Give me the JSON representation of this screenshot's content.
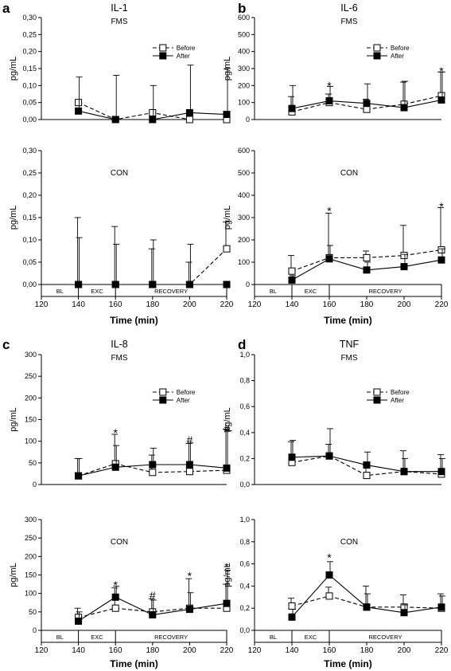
{
  "chart_data": [
    {
      "panel": "a",
      "title": "IL-1",
      "type": "line",
      "ylabel": "pg/mL",
      "xlabel": "Time (min)",
      "ylim": [
        0,
        0.3
      ],
      "yticks": [
        "0,00",
        "0,05",
        "0,10",
        "0,15",
        "0,20",
        "0,25",
        "0,30"
      ],
      "xlim": [
        120,
        220
      ],
      "x": [
        140,
        160,
        180,
        200,
        220
      ],
      "xticks": [
        "120",
        "140",
        "160",
        "180",
        "200",
        "220"
      ],
      "phases": [
        "BL",
        "EXC",
        "RECOVERY"
      ],
      "groups": [
        {
          "group": "FMS",
          "legend": [
            "Before",
            "After"
          ],
          "series": [
            {
              "name": "Before",
              "values": [
                0.05,
                0.0,
                0.02,
                0.0,
                0.0
              ],
              "err": [
                0.0,
                0.0,
                0.0,
                0.0,
                0.0
              ]
            },
            {
              "name": "After",
              "values": [
                0.025,
                0.0,
                0.0,
                0.02,
                0.015
              ],
              "err": [
                0.1,
                0.13,
                0.1,
                0.14,
                0.135
              ]
            }
          ],
          "sig": []
        },
        {
          "group": "CON",
          "legend": [],
          "series": [
            {
              "name": "Before",
              "values": [
                0.0,
                0.0,
                0.0,
                0.0,
                0.08
              ],
              "err": [
                0.15,
                0.13,
                0.08,
                0.05,
                0.06
              ]
            },
            {
              "name": "After",
              "values": [
                0.0,
                0.0,
                0.0,
                0.0,
                0.0
              ],
              "err": [
                0.105,
                0.09,
                0.1,
                0.09,
                0.0
              ]
            }
          ],
          "sig": []
        }
      ]
    },
    {
      "panel": "b",
      "title": "IL-6",
      "type": "line",
      "ylabel": "pg/mL",
      "xlabel": "Time (min)",
      "ylim": [
        0,
        600
      ],
      "yticks": [
        "0",
        "100",
        "200",
        "300",
        "400",
        "500",
        "600"
      ],
      "xlim": [
        120,
        220
      ],
      "x": [
        140,
        160,
        180,
        200,
        220
      ],
      "xticks": [
        "120",
        "140",
        "160",
        "180",
        "200",
        "220"
      ],
      "phases": [
        "BL",
        "EXC",
        "RECOVERY"
      ],
      "groups": [
        {
          "group": "FMS",
          "legend": [
            "Before",
            "After"
          ],
          "series": [
            {
              "name": "Before",
              "values": [
                45,
                100,
                60,
                90,
                140
              ],
              "err": [
                90,
                50,
                60,
                130,
                140
              ]
            },
            {
              "name": "After",
              "values": [
                65,
                110,
                95,
                70,
                115
              ],
              "err": [
                135,
                85,
                115,
                155,
                165
              ]
            }
          ],
          "sig": [
            {
              "x": 160,
              "y": 200,
              "mark": "*"
            },
            {
              "x": 220,
              "y": 285,
              "mark": "*"
            }
          ]
        },
        {
          "group": "CON",
          "legend": [],
          "series": [
            {
              "name": "Before",
              "values": [
                60,
                120,
                120,
                130,
                155
              ],
              "err": [
                70,
                200,
                30,
                135,
                190
              ]
            },
            {
              "name": "After",
              "values": [
                20,
                115,
                65,
                80,
                110
              ],
              "err": [
                20,
                60,
                35,
                55,
                50
              ]
            }
          ],
          "sig": [
            {
              "x": 160,
              "y": 330,
              "mark": "*"
            },
            {
              "x": 220,
              "y": 350,
              "mark": "*"
            }
          ]
        }
      ]
    },
    {
      "panel": "c",
      "title": "IL-8",
      "type": "line",
      "ylabel": "pg/mL",
      "xlabel": "Time (min)",
      "ylim": [
        0,
        300
      ],
      "yticks": [
        "0",
        "50",
        "100",
        "150",
        "200",
        "250",
        "300"
      ],
      "xlim": [
        120,
        220
      ],
      "x": [
        140,
        160,
        180,
        200,
        220
      ],
      "xticks": [
        "120",
        "140",
        "160",
        "180",
        "200",
        "220"
      ],
      "phases": [
        "BL",
        "EXC",
        "RECOVERY"
      ],
      "groups": [
        {
          "group": "FMS",
          "legend": [
            "Before",
            "After"
          ],
          "series": [
            {
              "name": "Before",
              "values": [
                20,
                48,
                28,
                30,
                33
              ],
              "err": [
                40,
                68,
                40,
                65,
                95
              ]
            },
            {
              "name": "After",
              "values": [
                20,
                40,
                46,
                46,
                38
              ],
              "err": [
                40,
                50,
                38,
                50,
                85
              ]
            }
          ],
          "sig": [
            {
              "x": 160,
              "y": 120,
              "mark": "*"
            },
            {
              "x": 200,
              "y": 103,
              "mark": "#"
            },
            {
              "x": 220,
              "y": 130,
              "mark": "#"
            }
          ]
        },
        {
          "group": "CON",
          "legend": [],
          "series": [
            {
              "name": "Before",
              "values": [
                35,
                60,
                50,
                60,
                60
              ],
              "err": [
                25,
                55,
                35,
                80,
                65
              ]
            },
            {
              "name": "After",
              "values": [
                25,
                90,
                42,
                57,
                73
              ],
              "err": [
                25,
                30,
                40,
                45,
                90
              ]
            }
          ],
          "sig": [
            {
              "x": 160,
              "y": 123,
              "mark": "*"
            },
            {
              "x": 180,
              "y": 95,
              "mark": "#"
            },
            {
              "x": 200,
              "y": 148,
              "mark": "*"
            },
            {
              "x": 220,
              "y": 173,
              "mark": "*"
            }
          ]
        }
      ]
    },
    {
      "panel": "d",
      "title": "TNF",
      "type": "line",
      "ylabel": "pg/mL",
      "xlabel": "Time (min)",
      "ylim": [
        0,
        1.0
      ],
      "yticks": [
        "0,0",
        "0,2",
        "0,4",
        "0,6",
        "0,8",
        "1,0"
      ],
      "xlim": [
        120,
        220
      ],
      "x": [
        140,
        160,
        180,
        200,
        220
      ],
      "xticks": [
        "120",
        "140",
        "160",
        "180",
        "200",
        "220"
      ],
      "phases": [
        "BL",
        "EXC",
        "RECOVERY"
      ],
      "groups": [
        {
          "group": "FMS",
          "legend": [
            "Before",
            "After"
          ],
          "series": [
            {
              "name": "Before",
              "values": [
                0.17,
                0.22,
                0.07,
                0.1,
                0.08
              ],
              "err": [
                0.16,
                0.09,
                0.08,
                0.16,
                0.15
              ]
            },
            {
              "name": "After",
              "values": [
                0.21,
                0.22,
                0.15,
                0.1,
                0.1
              ],
              "err": [
                0.13,
                0.21,
                0.1,
                0.1,
                0.1
              ]
            }
          ],
          "sig": []
        },
        {
          "group": "CON",
          "legend": [],
          "series": [
            {
              "name": "Before",
              "values": [
                0.22,
                0.31,
                0.21,
                0.21,
                0.2
              ],
              "err": [
                0.07,
                0.08,
                0.19,
                0.11,
                0.13
              ]
            },
            {
              "name": "After",
              "values": [
                0.12,
                0.5,
                0.21,
                0.16,
                0.21
              ],
              "err": [
                0.07,
                0.12,
                0.12,
                0.07,
                0.1
              ]
            }
          ],
          "sig": [
            {
              "x": 160,
              "y": 0.66,
              "mark": "*"
            }
          ]
        }
      ]
    }
  ]
}
